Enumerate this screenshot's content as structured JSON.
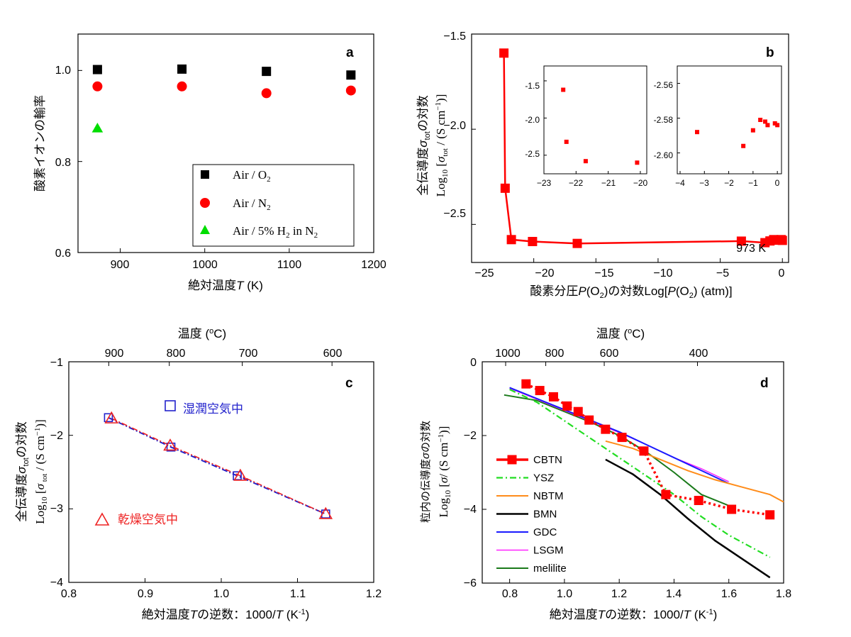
{
  "chart_data": [
    {
      "panel": "a",
      "type": "scatter",
      "xlabel": "絶対温度T (K)",
      "ylabel": "酸素イオンの輸率",
      "xlim": [
        850,
        1200
      ],
      "ylim": [
        0.6,
        1.08
      ],
      "xticks": [
        900,
        1000,
        1100,
        1200
      ],
      "yticks": [
        0.6,
        0.8,
        1.0
      ],
      "legend_position": "bottom-right",
      "series": [
        {
          "name": "Air / O2",
          "color": "#000000",
          "marker": "square",
          "x": [
            873,
            973,
            1073,
            1173
          ],
          "y": [
            1.002,
            1.003,
            0.998,
            0.99
          ]
        },
        {
          "name": "Air / N2",
          "color": "#ff0000",
          "marker": "circle",
          "x": [
            873,
            973,
            1073,
            1173
          ],
          "y": [
            0.965,
            0.965,
            0.95,
            0.956
          ]
        },
        {
          "name": "Air / 5% H2 in N2",
          "color": "#00dd00",
          "marker": "triangle",
          "x": [
            873
          ],
          "y": [
            0.873
          ]
        }
      ]
    },
    {
      "panel": "b",
      "type": "line",
      "xlabel": "酸素分圧P(O2)の対数Log[P(O2) (atm)]",
      "ylabel_line1": "全伝導度σtotの対数",
      "ylabel_line2": "Log10 [σtot / (S cm-1)]",
      "xlim": [
        -25,
        0.5
      ],
      "ylim": [
        -2.7,
        -1.5
      ],
      "xticks": [
        -25,
        -20,
        -15,
        -10,
        -5,
        0
      ],
      "yticks": [
        -2.5,
        -2.0,
        -1.5
      ],
      "annotation": "973 K",
      "series": [
        {
          "color": "#ff0000",
          "marker": "square",
          "x": [
            -22.4,
            -22.3,
            -21.8,
            -20.1,
            -16.5,
            -3.3,
            -1.4,
            -1.0,
            -0.7,
            -0.5,
            -0.4,
            -0.1,
            0.0
          ],
          "y": [
            -1.6,
            -2.31,
            -2.58,
            -2.59,
            -2.6,
            -2.588,
            -2.596,
            -2.587,
            -2.58,
            -2.583,
            -2.581,
            -2.58,
            -2.584
          ]
        }
      ],
      "insets": [
        {
          "xlim": [
            -23,
            -19.8
          ],
          "ylim": [
            -2.75,
            -1.3
          ],
          "xticks": [
            -23,
            -22,
            -21,
            -20
          ],
          "yticks": [
            -2.5,
            -2.0,
            -1.5
          ],
          "x": [
            -22.4,
            -22.3,
            -21.7,
            -20.1
          ],
          "y": [
            -1.62,
            -2.32,
            -2.58,
            -2.6
          ]
        },
        {
          "xlim": [
            -4,
            0.2
          ],
          "ylim": [
            -2.612,
            -2.55
          ],
          "xticks": [
            -4,
            -3,
            -2,
            -1,
            0
          ],
          "yticks": [
            -2.6,
            -2.58,
            -2.56
          ],
          "x": [
            -3.3,
            -1.4,
            -1.0,
            -0.7,
            -0.5,
            -0.4,
            -0.1,
            0.0
          ],
          "y": [
            -2.588,
            -2.596,
            -2.587,
            -2.581,
            -2.582,
            -2.584,
            -2.583,
            -2.584
          ]
        }
      ]
    },
    {
      "panel": "c",
      "type": "line",
      "xlabel": "絶対温度Tの逆数：1000/T (K-1)",
      "x2label": "温度 (oC)",
      "ylabel_line1": "全伝導度σtotの対数",
      "ylabel_line2": "Log10 [σ tot / (S cm-1)]",
      "xlim": [
        0.8,
        1.2
      ],
      "ylim": [
        -4,
        -1
      ],
      "xticks": [
        0.8,
        0.9,
        1.0,
        1.1,
        1.2
      ],
      "yticks": [
        -4,
        -3,
        -2,
        -1
      ],
      "x2ticks": [
        900,
        800,
        700,
        600
      ],
      "series": [
        {
          "name": "湿潤空気中",
          "color": "#2222cc",
          "marker": "open-square",
          "x": [
            0.852,
            0.934,
            1.021,
            1.137
          ],
          "y": [
            -1.76,
            -2.16,
            -2.55,
            -3.07
          ]
        },
        {
          "name": "乾燥空気中",
          "color": "#ee2222",
          "marker": "open-triangle",
          "x": [
            0.856,
            0.933,
            1.025,
            1.137
          ],
          "y": [
            -1.77,
            -2.14,
            -2.55,
            -3.07
          ]
        }
      ]
    },
    {
      "panel": "d",
      "type": "line",
      "xlabel": "絶対温度Tの逆数：1000/T (K-1)",
      "x2label": "温度 (oC)",
      "ylabel_line1": "粒内の伝導度σの対数",
      "ylabel_line2": "Log10 [σ/ (S cm-1)]",
      "xlim": [
        0.7,
        1.8
      ],
      "ylim": [
        -6,
        0
      ],
      "xticks": [
        0.8,
        1.0,
        1.2,
        1.4,
        1.6,
        1.8
      ],
      "yticks": [
        -6,
        -4,
        -2,
        0
      ],
      "x2ticks": [
        1000,
        800,
        600,
        400
      ],
      "series": [
        {
          "name": "CBTN",
          "color": "#ff0000",
          "marker": "square",
          "x": [
            0.86,
            0.91,
            0.96,
            1.01,
            1.05,
            1.09,
            1.15,
            1.21,
            1.29,
            1.37,
            1.49,
            1.61,
            1.75
          ],
          "y": [
            -0.6,
            -0.78,
            -0.95,
            -1.2,
            -1.35,
            -1.58,
            -1.83,
            -2.05,
            -2.42,
            -3.6,
            -3.76,
            -4.0,
            -4.15
          ]
        },
        {
          "name": "YSZ",
          "color": "#22dd22",
          "x": [
            0.8,
            0.9,
            1.0,
            1.1,
            1.2,
            1.3,
            1.4,
            1.5,
            1.6,
            1.75
          ],
          "y": [
            -0.75,
            -1.1,
            -1.6,
            -2.1,
            -2.6,
            -3.1,
            -3.6,
            -4.2,
            -4.7,
            -5.3
          ]
        },
        {
          "name": "NBTM",
          "color": "#ff8c1a",
          "x": [
            1.15,
            1.25,
            1.35,
            1.45,
            1.55,
            1.65,
            1.75,
            1.8
          ],
          "y": [
            -2.15,
            -2.35,
            -2.65,
            -2.95,
            -3.2,
            -3.4,
            -3.6,
            -3.8
          ]
        },
        {
          "name": "BMN",
          "color": "#000000",
          "x": [
            1.15,
            1.25,
            1.35,
            1.45,
            1.55,
            1.65,
            1.75
          ],
          "y": [
            -2.65,
            -3.05,
            -3.6,
            -4.25,
            -4.85,
            -5.35,
            -5.85
          ]
        },
        {
          "name": "GDC",
          "color": "#1a1aff",
          "x": [
            0.8,
            0.9,
            1.0,
            1.1,
            1.2,
            1.3,
            1.4,
            1.5,
            1.6
          ],
          "y": [
            -0.7,
            -1.0,
            -1.3,
            -1.6,
            -1.9,
            -2.25,
            -2.6,
            -2.95,
            -3.3
          ]
        },
        {
          "name": "LSGM",
          "color": "#ff22ff",
          "x": [
            0.8,
            0.9,
            1.0,
            1.1,
            1.2,
            1.3,
            1.4,
            1.5,
            1.6
          ],
          "y": [
            -0.72,
            -1.02,
            -1.32,
            -1.62,
            -1.92,
            -2.25,
            -2.6,
            -2.9,
            -3.25
          ]
        },
        {
          "name": "melilite",
          "color": "#1a7a1a",
          "x": [
            0.78,
            0.9,
            1.0,
            1.1,
            1.2,
            1.3,
            1.4,
            1.5,
            1.6
          ],
          "y": [
            -0.9,
            -1.05,
            -1.35,
            -1.65,
            -2.0,
            -2.45,
            -3.0,
            -3.6,
            -3.9
          ]
        }
      ]
    }
  ],
  "texts": {
    "a": {
      "panel": "a",
      "xticks": [
        "900",
        "1000",
        "1100",
        "1200"
      ],
      "yticks": [
        "0.6",
        "0.8",
        "1.0"
      ],
      "xlabel": "絶対温度",
      "xlabel_italic": "T",
      "xlabel_unit": " (K)",
      "ylabel": "酸素イオンの輸率",
      "legend": [
        {
          "prefix": "Air / O",
          "sub": "2",
          "suffix": ""
        },
        {
          "prefix": "Air /  N",
          "sub": "2",
          "suffix": ""
        },
        {
          "prefix": "Air / 5% H",
          "sub": "2",
          "suffix": " in N",
          "sub2": "2"
        }
      ]
    },
    "b": {
      "panel": "b",
      "xticks": [
        "−25",
        "−20",
        "−15",
        "−10",
        "−5",
        "0"
      ],
      "yticks": [
        "−2.5",
        "−2.0",
        "−1.5"
      ],
      "xlabel_a": "酸素分圧",
      "xlabel_b": "P",
      "xlabel_c": "(O",
      "xlabel_d": "2",
      "xlabel_e": ")の対数Log[",
      "xlabel_f": "P",
      "xlabel_g": "(O",
      "xlabel_h": "2",
      "xlabel_i": ") (atm)]",
      "ylabel1_a": "全伝導度",
      "ylabel1_b": "σ",
      "ylabel1_c": "tot",
      "ylabel1_d": "の対数",
      "ylabel2_a": "Log",
      "ylabel2_b": "10",
      "ylabel2_c": " [",
      "ylabel2_d": "σ",
      "ylabel2_e": "tot",
      "ylabel2_f": " / (S cm",
      "ylabel2_g": "−1",
      "ylabel2_h": ")]",
      "annotation": "973 K",
      "inset1_xticks": [
        "−23",
        "−22",
        "−21",
        "−20"
      ],
      "inset1_yticks": [
        "-2.5",
        "-2.0",
        "-1.5"
      ],
      "inset2_xticks": [
        "−4",
        "−3",
        "−2",
        "−1",
        "0"
      ],
      "inset2_yticks": [
        "-2.60",
        "-2.58",
        "-2.56"
      ]
    },
    "c": {
      "panel": "c",
      "xticks": [
        "0.8",
        "0.9",
        "1.0",
        "1.1",
        "1.2"
      ],
      "yticks": [
        "−4",
        "−3",
        "−2",
        "−1"
      ],
      "x2ticks": [
        "900",
        "800",
        "700",
        "600"
      ],
      "x2label_a": "温度 (",
      "x2label_b": "o",
      "x2label_c": "C)",
      "xlabel_a": "絶対温度",
      "xlabel_b": "T",
      "xlabel_c": "の逆数：1000/",
      "xlabel_d": "T",
      "xlabel_e": " (K",
      "xlabel_f": "-1",
      "xlabel_g": ")",
      "ylabel1_a": "全伝導度",
      "ylabel1_b": "σ",
      "ylabel1_c": "tot",
      "ylabel1_d": "の対数",
      "ylabel2_a": "Log",
      "ylabel2_b": "10",
      "ylabel2_c": " [",
      "ylabel2_d": "σ",
      "ylabel2_e": " tot",
      "ylabel2_f": " / (S cm",
      "ylabel2_g": "−1",
      "ylabel2_h": ")]",
      "legend_wet": "湿潤空気中",
      "legend_dry": "乾燥空気中"
    },
    "d": {
      "panel": "d",
      "xticks": [
        "0.8",
        "1.0",
        "1.2",
        "1.4",
        "1.6",
        "1.8"
      ],
      "yticks": [
        "−6",
        "−4",
        "−2",
        "0"
      ],
      "x2ticks": [
        "1000",
        "800",
        "600",
        "400"
      ],
      "x2label_a": "温度 (",
      "x2label_b": "o",
      "x2label_c": "C)",
      "xlabel_a": "絶対温度",
      "xlabel_b": "T",
      "xlabel_c": "の逆数：1000/",
      "xlabel_d": "T",
      "xlabel_e": " (K",
      "xlabel_f": "-1",
      "xlabel_g": ")",
      "ylabel1_a": "粒内の伝導度",
      "ylabel1_b": "σ",
      "ylabel1_c": "の対数",
      "ylabel2_a": "Log",
      "ylabel2_b": "10",
      "ylabel2_c": " [",
      "ylabel2_d": "σ",
      "ylabel2_e": "/ (S cm",
      "ylabel2_f": "−1",
      "ylabel2_g": ")]",
      "legend": [
        "CBTN",
        "YSZ",
        "NBTM",
        "BMN",
        "GDC",
        "LSGM",
        "melilite"
      ]
    }
  }
}
